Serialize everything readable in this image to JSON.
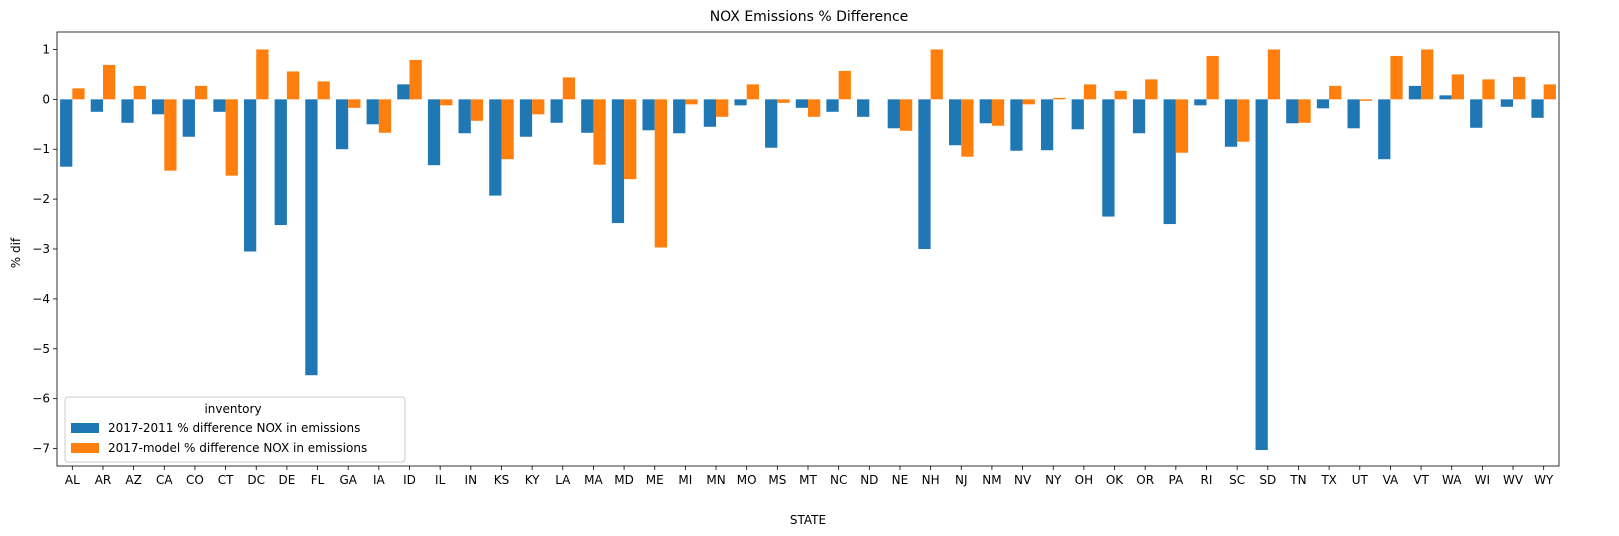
{
  "chart_data": {
    "type": "bar",
    "title": "NOX Emissions % Difference",
    "xlabel": "STATE",
    "ylabel": "% dif",
    "ylim": [
      -7.35,
      1.35
    ],
    "yticks": [
      1,
      0,
      -1,
      -2,
      -3,
      -4,
      -5,
      -6,
      -7
    ],
    "ytick_labels": [
      "1",
      "0",
      "−1",
      "−2",
      "−3",
      "−4",
      "−5",
      "−6",
      "−7"
    ],
    "grid": false,
    "legend": {
      "title": "inventory",
      "position": "lower-left"
    },
    "categories": [
      "AL",
      "AR",
      "AZ",
      "CA",
      "CO",
      "CT",
      "DC",
      "DE",
      "FL",
      "GA",
      "IA",
      "ID",
      "IL",
      "IN",
      "KS",
      "KY",
      "LA",
      "MA",
      "MD",
      "ME",
      "MI",
      "MN",
      "MO",
      "MS",
      "MT",
      "NC",
      "ND",
      "NE",
      "NH",
      "NJ",
      "NM",
      "NV",
      "NY",
      "OH",
      "OK",
      "OR",
      "PA",
      "RI",
      "SC",
      "SD",
      "TN",
      "TX",
      "UT",
      "VA",
      "VT",
      "WA",
      "WI",
      "WV",
      "WY"
    ],
    "series": [
      {
        "name": "2017-2011 % difference NOX in emissions",
        "color": "#1f77b4",
        "values": [
          -1.35,
          -0.25,
          -0.47,
          -0.3,
          -0.75,
          -0.25,
          -3.05,
          -2.52,
          -5.53,
          -1.0,
          -0.5,
          0.3,
          -1.32,
          -0.68,
          -1.93,
          -0.75,
          -0.47,
          -0.67,
          -2.48,
          -0.62,
          -0.68,
          -0.55,
          -0.12,
          -0.97,
          -0.17,
          -0.25,
          -0.35,
          -0.58,
          -3.0,
          -0.92,
          -0.48,
          -1.03,
          -1.02,
          -0.6,
          -2.35,
          -0.68,
          -2.5,
          -0.12,
          -0.95,
          -7.03,
          -0.48,
          -0.18,
          -0.58,
          -1.2,
          0.27,
          0.08,
          -0.57,
          -0.15,
          -0.37
        ]
      },
      {
        "name": "2017-model % difference NOX in emissions",
        "color": "#ff7f0e",
        "values": [
          0.22,
          0.69,
          0.27,
          -1.43,
          0.27,
          -1.53,
          1.0,
          0.56,
          0.36,
          -0.17,
          -0.67,
          0.79,
          -0.12,
          -0.43,
          -1.2,
          -0.3,
          0.44,
          -1.31,
          -1.6,
          -2.97,
          -0.1,
          -0.35,
          0.3,
          -0.07,
          -0.35,
          0.57,
          0.0,
          -0.63,
          1.0,
          -1.15,
          -0.53,
          -0.1,
          0.03,
          0.3,
          0.17,
          0.4,
          -1.07,
          0.87,
          -0.85,
          1.0,
          -0.47,
          0.27,
          -0.03,
          0.87,
          1.0,
          0.5,
          0.4,
          0.45,
          0.3
        ]
      }
    ]
  }
}
